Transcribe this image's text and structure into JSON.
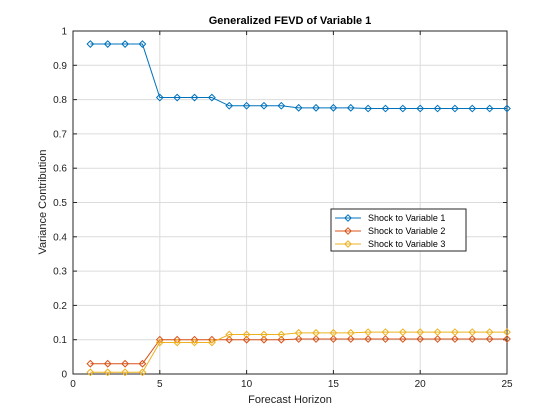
{
  "chart_data": {
    "type": "line",
    "title": "Generalized FEVD of Variable 1",
    "xlabel": "Forecast Horizon",
    "ylabel": "Variance Contribution",
    "xlim": [
      0,
      25
    ],
    "ylim": [
      0,
      1
    ],
    "xticks": [
      0,
      5,
      10,
      15,
      20,
      25
    ],
    "yticks": [
      0,
      0.1,
      0.2,
      0.3,
      0.4,
      0.5,
      0.6,
      0.7,
      0.8,
      0.9,
      1
    ],
    "ytick_labels": [
      "0",
      "0.1",
      "0.2",
      "0.3",
      "0.4",
      "0.5",
      "0.6",
      "0.7",
      "0.8",
      "0.9",
      "1"
    ],
    "grid": true,
    "legend_position": "center-right",
    "marker": "diamond",
    "x": [
      1,
      2,
      3,
      4,
      5,
      6,
      7,
      8,
      9,
      10,
      11,
      12,
      13,
      14,
      15,
      16,
      17,
      18,
      19,
      20,
      21,
      22,
      23,
      24,
      25
    ],
    "series": [
      {
        "name": "Shock to Variable 1",
        "color": "#0072BD",
        "values": [
          0.962,
          0.962,
          0.962,
          0.962,
          0.806,
          0.806,
          0.806,
          0.806,
          0.782,
          0.782,
          0.782,
          0.782,
          0.776,
          0.776,
          0.776,
          0.776,
          0.774,
          0.774,
          0.774,
          0.774,
          0.774,
          0.774,
          0.774,
          0.774,
          0.774
        ]
      },
      {
        "name": "Shock to Variable 2",
        "color": "#D95319",
        "values": [
          0.03,
          0.03,
          0.03,
          0.03,
          0.1,
          0.1,
          0.1,
          0.1,
          0.1,
          0.1,
          0.1,
          0.1,
          0.102,
          0.102,
          0.102,
          0.102,
          0.102,
          0.102,
          0.102,
          0.102,
          0.102,
          0.102,
          0.102,
          0.102,
          0.102
        ]
      },
      {
        "name": "Shock to Variable 3",
        "color": "#EDB120",
        "values": [
          0.005,
          0.005,
          0.005,
          0.005,
          0.092,
          0.092,
          0.092,
          0.092,
          0.115,
          0.115,
          0.115,
          0.115,
          0.12,
          0.12,
          0.12,
          0.12,
          0.122,
          0.122,
          0.122,
          0.122,
          0.122,
          0.122,
          0.122,
          0.122,
          0.122
        ]
      }
    ]
  }
}
